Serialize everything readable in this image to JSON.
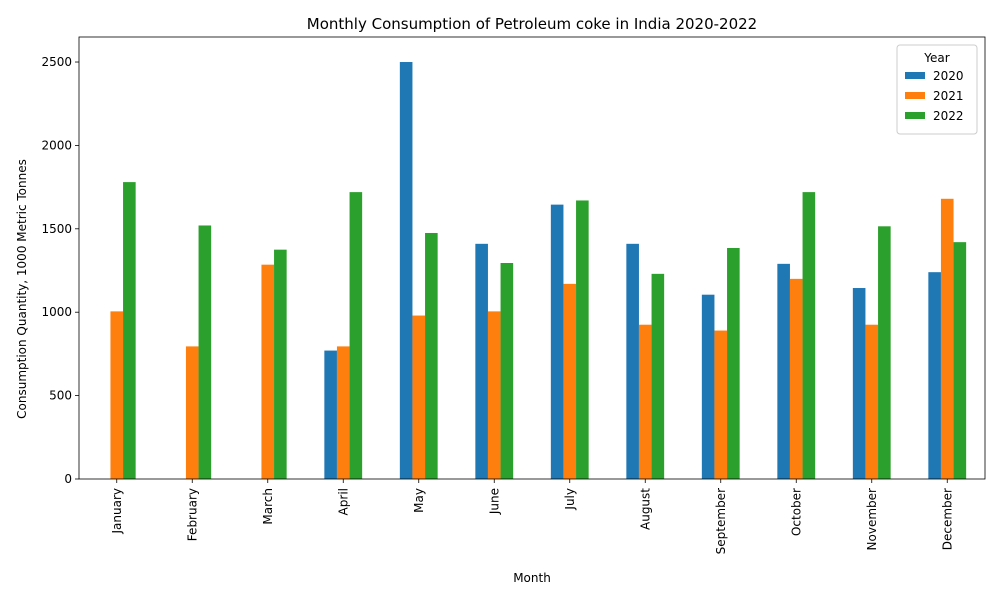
{
  "chart_data": {
    "type": "bar",
    "title": "Monthly Consumption of Petroleum coke in India 2020-2022",
    "xlabel": "Month",
    "ylabel": "Consumption Quantity, 1000 Metric Tonnes",
    "ylim": [
      0,
      2650
    ],
    "yticks": [
      0,
      500,
      1000,
      1500,
      2000,
      2500
    ],
    "grid": false,
    "legend": {
      "title": "Year",
      "placement": "top-right"
    },
    "categories": [
      "January",
      "February",
      "March",
      "April",
      "May",
      "June",
      "July",
      "August",
      "September",
      "October",
      "November",
      "December"
    ],
    "series": [
      {
        "name": "2020",
        "color": "#1f77b4",
        "values": [
          null,
          null,
          null,
          770,
          2500,
          1410,
          1645,
          1410,
          1105,
          1290,
          1145,
          1240
        ]
      },
      {
        "name": "2021",
        "color": "#ff7f0e",
        "values": [
          1005,
          795,
          1285,
          795,
          980,
          1005,
          1170,
          925,
          890,
          1200,
          925,
          1680
        ]
      },
      {
        "name": "2022",
        "color": "#2ca02c",
        "values": [
          1780,
          1520,
          1375,
          1720,
          1475,
          1295,
          1670,
          1230,
          1385,
          1720,
          1515,
          1420
        ]
      }
    ]
  }
}
